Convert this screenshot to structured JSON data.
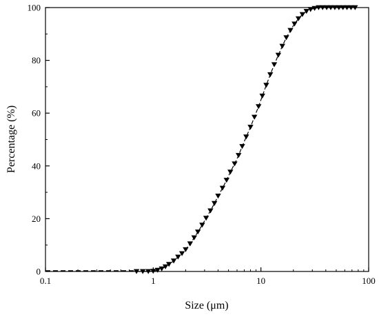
{
  "chart_data": {
    "type": "scatter",
    "title": "",
    "xlabel": "Size (μm)",
    "ylabel": "Percentage (%)",
    "x_scale": "log",
    "xlim": [
      0.1,
      100
    ],
    "ylim": [
      0,
      100
    ],
    "x_ticks": [
      0.1,
      1,
      10,
      100
    ],
    "x_tick_labels": [
      "0.1",
      "1",
      "10",
      "100"
    ],
    "y_ticks": [
      0,
      20,
      40,
      60,
      80,
      100
    ],
    "y_tick_labels": [
      "0",
      "20",
      "40",
      "60",
      "80",
      "100"
    ],
    "grid": false,
    "legend": "none",
    "marker": "triangle-down",
    "line_style": "dashed",
    "color": "#000000",
    "series": [
      {
        "x": [
          0.7,
          0.8,
          0.9,
          1.0,
          1.1,
          1.2,
          1.3,
          1.4,
          1.55,
          1.7,
          1.85,
          2.0,
          2.2,
          2.4,
          2.6,
          2.85,
          3.1,
          3.4,
          3.7,
          4.0,
          4.4,
          4.8,
          5.2,
          5.7,
          6.2,
          6.7,
          7.3,
          8.0,
          8.7,
          9.5,
          10.3,
          11.2,
          12.2,
          13.3,
          14.5,
          15.8,
          17.2,
          18.8,
          20.5,
          22.3,
          24.3,
          26.5,
          28.9,
          31.5,
          34.3,
          37.4,
          40.8,
          44.5,
          48.5,
          52.9,
          57.7,
          62.9,
          68.6,
          74.8
        ],
        "y": [
          0,
          0,
          0,
          0.1,
          0.5,
          1,
          1.8,
          2.7,
          4,
          5.5,
          6.8,
          8.3,
          10.5,
          12.8,
          15,
          17.6,
          20.2,
          23,
          25.8,
          28.6,
          31.6,
          34.6,
          37.7,
          40.8,
          44,
          47.4,
          51,
          54.7,
          58.5,
          62.5,
          66.5,
          70.6,
          74.6,
          78.4,
          82,
          85.4,
          88.6,
          91.4,
          93.8,
          95.8,
          97.4,
          98.6,
          99.3,
          99.7,
          100,
          100,
          100,
          100,
          100,
          100,
          100,
          100,
          100,
          100
        ]
      }
    ],
    "baseline_line": {
      "x": [
        0.1,
        0.7
      ],
      "y": [
        0.3,
        0.3
      ]
    }
  }
}
